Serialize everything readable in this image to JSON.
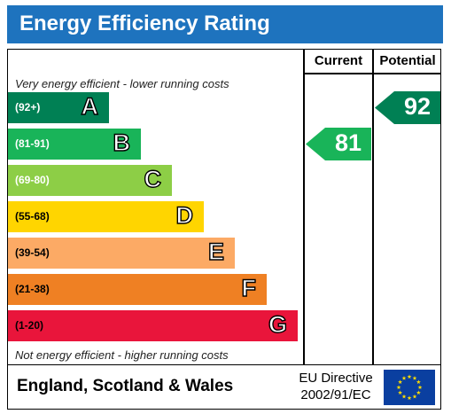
{
  "header": {
    "title": "Energy Efficiency Rating"
  },
  "columns": {
    "current": "Current",
    "potential": "Potential"
  },
  "notes": {
    "top": "Very energy efficient - lower running costs",
    "bottom": "Not energy efficient - higher running costs"
  },
  "chart_data": {
    "type": "bar",
    "title": "Energy Efficiency Rating",
    "categories": [
      "A",
      "B",
      "C",
      "D",
      "E",
      "F",
      "G"
    ],
    "bands": [
      {
        "letter": "A",
        "range": "(92+)",
        "color": "#008054"
      },
      {
        "letter": "B",
        "range": "(81-91)",
        "color": "#19b459"
      },
      {
        "letter": "C",
        "range": "(69-80)",
        "color": "#8dce46"
      },
      {
        "letter": "D",
        "range": "(55-68)",
        "color": "#ffd500"
      },
      {
        "letter": "E",
        "range": "(39-54)",
        "color": "#fcaa65"
      },
      {
        "letter": "F",
        "range": "(21-38)",
        "color": "#ef8023"
      },
      {
        "letter": "G",
        "range": "(1-20)",
        "color": "#e9153b"
      }
    ],
    "current": {
      "value": "81",
      "band": "B",
      "color": "#19b459"
    },
    "potential": {
      "value": "92",
      "band": "A",
      "color": "#008054"
    }
  },
  "footer": {
    "region": "England, Scotland & Wales",
    "directive_line1": "EU Directive",
    "directive_line2": "2002/91/EC"
  }
}
